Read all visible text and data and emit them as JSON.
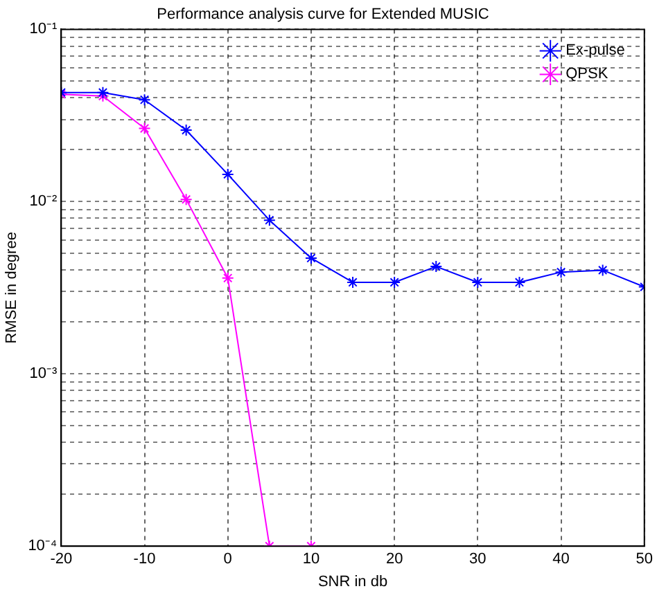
{
  "chart_data": {
    "type": "line",
    "title": "Performance analysis curve for Extended MUSIC",
    "xlabel": "SNR in db",
    "ylabel": "RMSE in degree",
    "x": [
      -20,
      -15,
      -10,
      -5,
      0,
      5,
      10,
      15,
      20,
      25,
      30,
      35,
      40,
      45,
      50
    ],
    "series": [
      {
        "name": "Ex-pulse",
        "color": "#0000ff",
        "values": [
          0.043,
          0.043,
          0.039,
          0.026,
          0.0144,
          0.0078,
          0.0047,
          0.0034,
          0.0034,
          0.0042,
          0.0034,
          0.0034,
          0.0039,
          0.004,
          0.0032
        ]
      },
      {
        "name": "QPSK",
        "color": "#ff00ff",
        "values": [
          0.042,
          0.041,
          0.0266,
          0.0103,
          0.0036,
          0.0001,
          0.0001,
          null,
          null,
          null,
          null,
          null,
          null,
          null,
          null
        ]
      }
    ],
    "log": "y",
    "xlim": [
      -20,
      50
    ],
    "xticks": [
      -20,
      -10,
      0,
      10,
      20,
      30,
      40,
      50
    ],
    "ylim": [
      0.0001,
      0.1
    ],
    "yticks": [
      {
        "value": 0.0001,
        "label": "10⁻⁴"
      },
      {
        "value": 0.0002,
        "label": null
      },
      {
        "value": 0.0003,
        "label": null
      },
      {
        "value": 0.0004,
        "label": null
      },
      {
        "value": 0.0005,
        "label": null
      },
      {
        "value": 0.0006,
        "label": null
      },
      {
        "value": 0.0007,
        "label": null
      },
      {
        "value": 0.0008,
        "label": null
      },
      {
        "value": 0.0009,
        "label": null
      },
      {
        "value": 0.001,
        "label": "10⁻³"
      },
      {
        "value": 0.002,
        "label": null
      },
      {
        "value": 0.003,
        "label": null
      },
      {
        "value": 0.004,
        "label": null
      },
      {
        "value": 0.005,
        "label": null
      },
      {
        "value": 0.006,
        "label": null
      },
      {
        "value": 0.007,
        "label": null
      },
      {
        "value": 0.008,
        "label": null
      },
      {
        "value": 0.009,
        "label": null
      },
      {
        "value": 0.01,
        "label": "10⁻²"
      },
      {
        "value": 0.02,
        "label": null
      },
      {
        "value": 0.03,
        "label": null
      },
      {
        "value": 0.04,
        "label": null
      },
      {
        "value": 0.05,
        "label": null
      },
      {
        "value": 0.06,
        "label": null
      },
      {
        "value": 0.07,
        "label": null
      },
      {
        "value": 0.08,
        "label": null
      },
      {
        "value": 0.09,
        "label": null
      },
      {
        "value": 0.1,
        "label": "10⁻¹"
      }
    ],
    "grid": true,
    "legend": "top right",
    "marker": "cross",
    "line_style": "solid"
  }
}
